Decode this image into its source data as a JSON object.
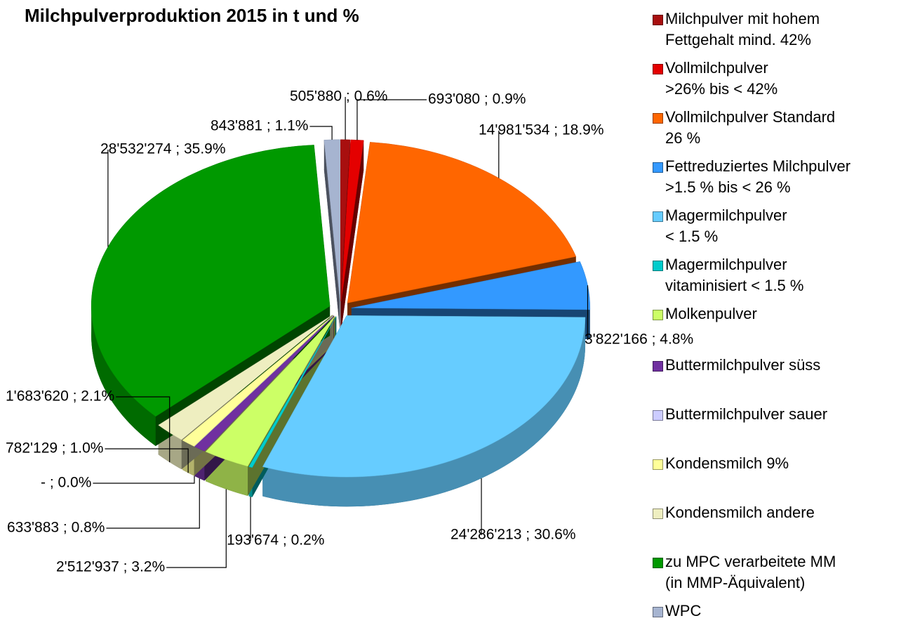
{
  "chart_data": {
    "type": "pie",
    "title": "Milchpulverproduktion 2015 in t und %",
    "categories": [
      "Milchpulver mit hohem\nFettgehalt mind. 42%",
      "Vollmilchpulver\n>26% bis < 42%",
      "Vollmilchpulver Standard\n26 %",
      "Fettreduziertes Milchpulver\n>1.5 % bis < 26 %",
      "Magermilchpulver\n< 1.5 %",
      "Magermilchpulver\nvitaminisiert < 1.5 %",
      "Molkenpulver",
      "Buttermilchpulver süss",
      "Buttermilchpulver sauer",
      "Kondensmilch 9%",
      "Kondensmilch andere",
      "zu MPC verarbeitete MM\n(in MMP-Äquivalent)",
      "WPC"
    ],
    "values": [
      505880,
      693080,
      14981534,
      3822166,
      24286213,
      193674,
      2512937,
      633883,
      0,
      782129,
      1683620,
      28532274,
      843881
    ],
    "value_labels": [
      "505'880 ; 0.6%",
      "693'080 ; 0.9%",
      "14'981'534 ; 18.9%",
      "3'822'166 ; 4.8%",
      "24'286'213 ; 30.6%",
      "193'674 ; 0.2%",
      "2'512'937 ; 3.2%",
      "633'883 ; 0.8%",
      "-  ; 0.0%",
      "782'129 ; 1.0%",
      "1'683'620 ; 2.1%",
      "28'532'274 ; 35.9%",
      "843'881 ; 1.1%"
    ],
    "colors": [
      "#a80f0f",
      "#e40000",
      "#ff6600",
      "#3399ff",
      "#66ccff",
      "#00cccc",
      "#ccff66",
      "#7030a0",
      "#ccccff",
      "#ffff99",
      "#eeeec0",
      "#009900",
      "#a6b4d0"
    ],
    "legend": "right"
  }
}
